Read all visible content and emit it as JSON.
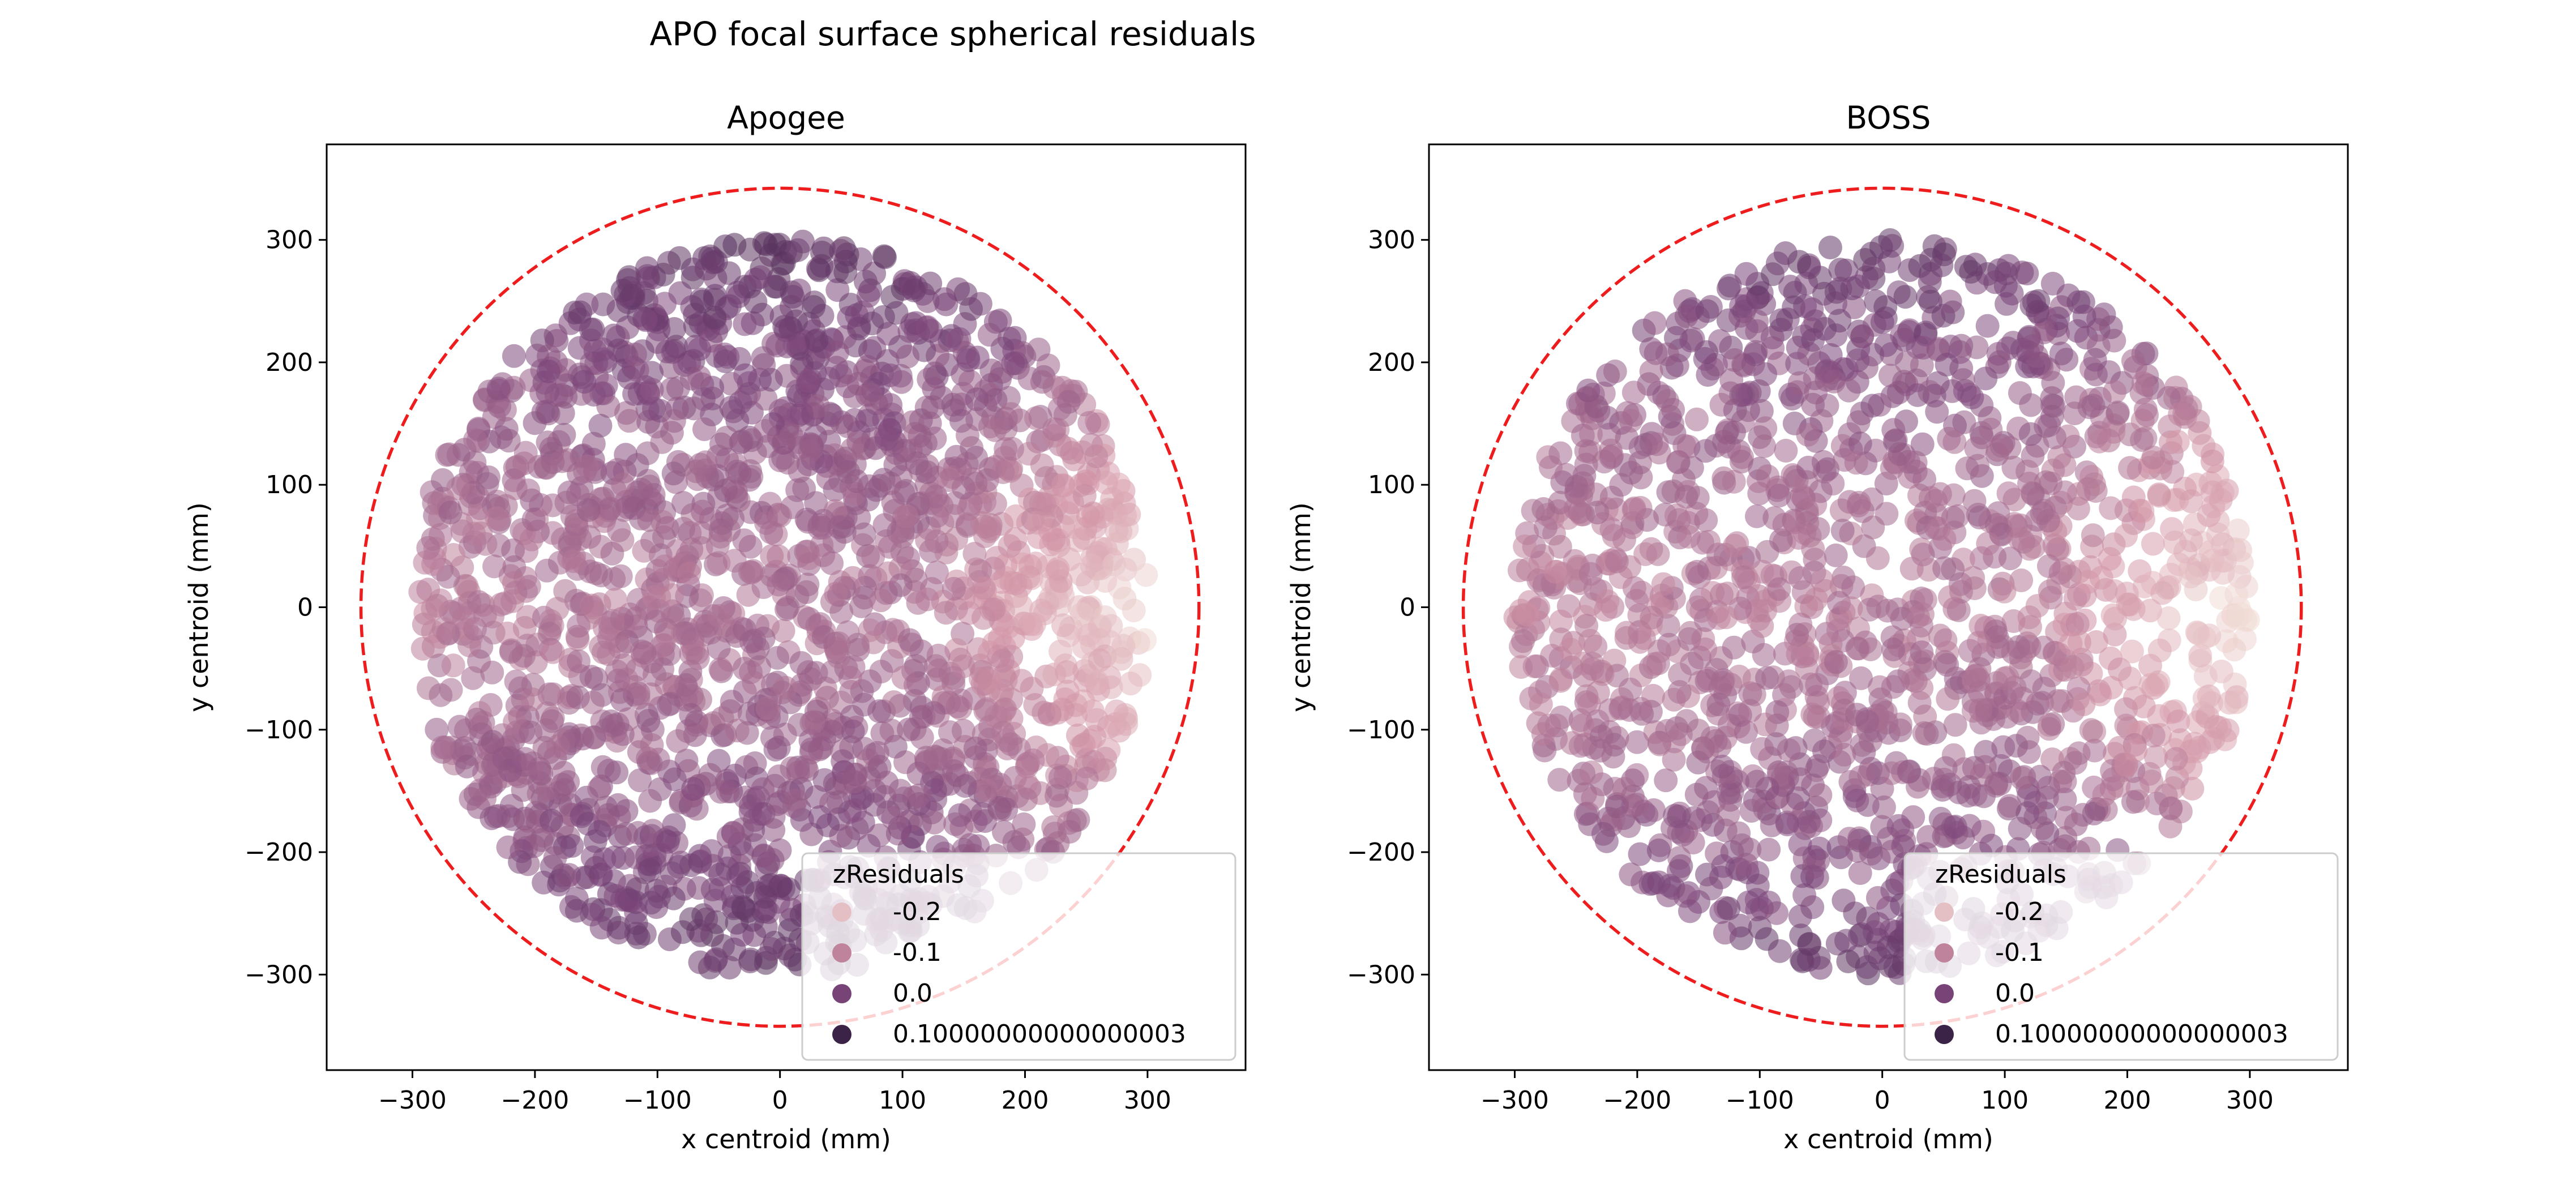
{
  "figure": {
    "suptitle": "APO focal surface spherical residuals"
  },
  "colors": {
    "circle": "#ee1c1c",
    "palette": [
      "#f1dcd6",
      "#d294a6",
      "#7a4579",
      "#2f1d3d"
    ]
  },
  "chart_data": [
    {
      "type": "scatter",
      "title": "Apogee",
      "xlabel": "x centroid (mm)",
      "ylabel": "y centroid (mm)",
      "xlim": [
        -370,
        380
      ],
      "ylim": [
        -378,
        378
      ],
      "xticks": [
        -300,
        -200,
        -100,
        0,
        100,
        200,
        300
      ],
      "yticks": [
        -300,
        -200,
        -100,
        0,
        100,
        200,
        300
      ],
      "xtick_labels": [
        "−300",
        "−200",
        "−100",
        "0",
        "100",
        "200",
        "300"
      ],
      "ytick_labels": [
        "−300",
        "−200",
        "−100",
        "0",
        "100",
        "200",
        "300"
      ],
      "grid": false,
      "point_region": {
        "center": [
          0,
          0
        ],
        "radius": 300
      },
      "point_count": 2200,
      "reference_circle": {
        "center": [
          0,
          0
        ],
        "radius": 342,
        "style": "dashed",
        "color": "red"
      },
      "color_by": "zResiduals",
      "color_range": [
        -0.25,
        0.12
      ],
      "legend": {
        "placement": "lower-right",
        "title": "zResiduals",
        "entries": [
          "-0.2",
          "-0.1",
          "0.0",
          "0.10000000000000003"
        ],
        "values": [
          -0.2,
          -0.1,
          0.0,
          0.1
        ]
      }
    },
    {
      "type": "scatter",
      "title": "BOSS",
      "xlabel": "x centroid (mm)",
      "ylabel": "y centroid (mm)",
      "xlim": [
        -370,
        380
      ],
      "ylim": [
        -378,
        378
      ],
      "xticks": [
        -300,
        -200,
        -100,
        0,
        100,
        200,
        300
      ],
      "yticks": [
        -300,
        -200,
        -100,
        0,
        100,
        200,
        300
      ],
      "xtick_labels": [
        "−300",
        "−200",
        "−100",
        "0",
        "100",
        "200",
        "300"
      ],
      "ytick_labels": [
        "−300",
        "−200",
        "−100",
        "0",
        "100",
        "200",
        "300"
      ],
      "grid": false,
      "point_region": {
        "center": [
          0,
          0
        ],
        "radius": 300
      },
      "point_count": 1700,
      "reference_circle": {
        "center": [
          0,
          0
        ],
        "radius": 342,
        "style": "dashed",
        "color": "red"
      },
      "color_by": "zResiduals",
      "color_range": [
        -0.25,
        0.12
      ],
      "legend": {
        "placement": "lower-right",
        "title": "zResiduals",
        "entries": [
          "-0.2",
          "-0.1",
          "0.0",
          "0.10000000000000003"
        ],
        "values": [
          -0.2,
          -0.1,
          0.0,
          0.1
        ]
      }
    }
  ]
}
